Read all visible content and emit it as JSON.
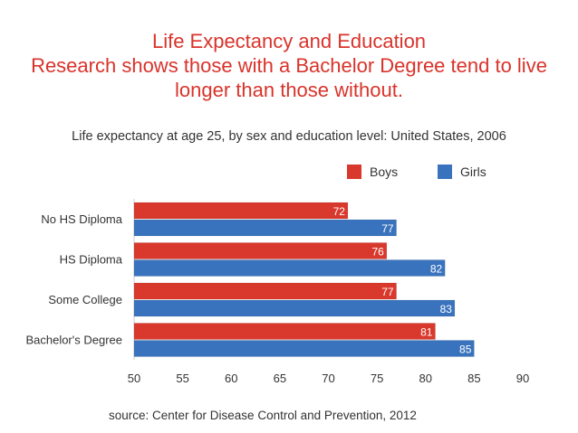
{
  "header": {
    "title_lines": [
      "Life Expectancy and Education",
      "Research shows those with a Bachelor Degree tend to live",
      "longer than those without."
    ],
    "subtitle": "Life expectancy at age 25, by sex and education level: United States, 2006"
  },
  "legend": {
    "boys": {
      "label": "Boys",
      "color": "#d9392c"
    },
    "girls": {
      "label": "Girls",
      "color": "#3a73bd"
    }
  },
  "chart_data": {
    "type": "bar",
    "orientation": "horizontal",
    "title": "Life expectancy at age 25, by sex and education level: United States, 2006",
    "categories": [
      "No HS Diploma",
      "HS Diploma",
      "Some College",
      "Bachelor's Degree"
    ],
    "series": [
      {
        "name": "Boys",
        "color": "#d9392c",
        "values": [
          72,
          76,
          77,
          81
        ]
      },
      {
        "name": "Girls",
        "color": "#3a73bd",
        "values": [
          77,
          82,
          83,
          85
        ]
      }
    ],
    "xlim": [
      50,
      90
    ],
    "xticks": [
      50,
      55,
      60,
      65,
      70,
      75,
      80,
      85,
      90
    ],
    "legend_position": "top-right",
    "grid": false,
    "data_labels": true
  },
  "footer": {
    "source": "source: Center for Disease Control and Prevention, 2012"
  }
}
